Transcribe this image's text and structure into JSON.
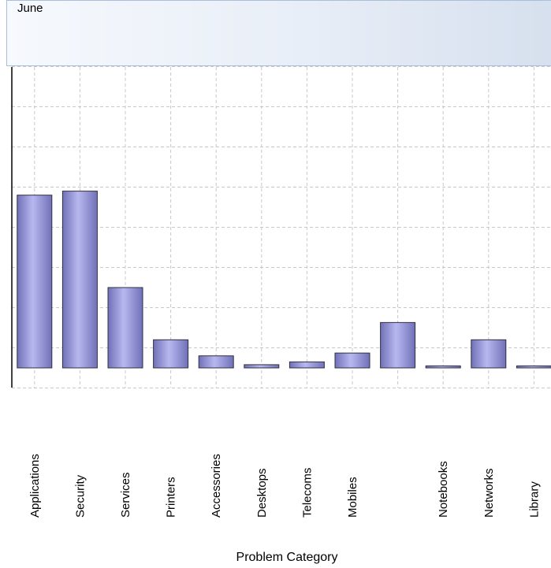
{
  "chart_data": {
    "type": "bar",
    "title": "June",
    "xlabel": "Problem Category",
    "ylabel": "",
    "categories": [
      "Applications",
      "Security",
      "Services",
      "Printers",
      "Accessories",
      "Desktops",
      "Telecoms",
      "Mobiles",
      "",
      "Notebooks",
      "Networks",
      "Library"
    ],
    "values": [
      4.3,
      4.4,
      2.0,
      0.7,
      0.3,
      0.08,
      0.15,
      0.37,
      1.13,
      0.05,
      0.7,
      0.05
    ],
    "ylim": [
      -0.5,
      7.5
    ],
    "grid": true,
    "legend": "none",
    "colors": {
      "bar_light": "#b8b8f0",
      "bar_dark": "#7070b8",
      "bar_edge": "#303040",
      "grid": "#c8c8c8",
      "header_border": "#a8bedb"
    }
  }
}
